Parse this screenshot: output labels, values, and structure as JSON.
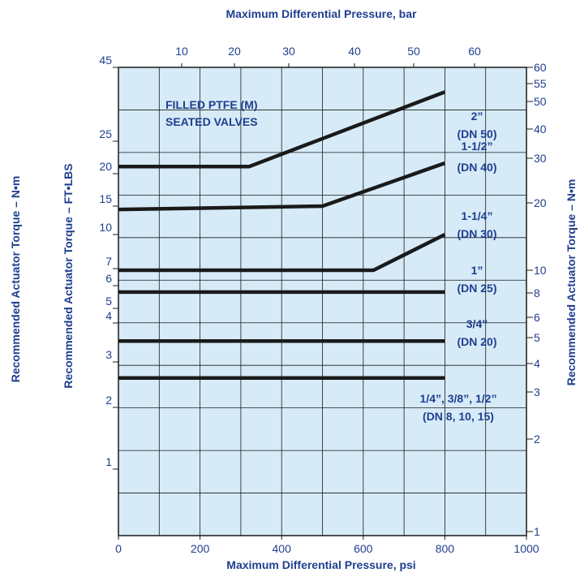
{
  "chart_data": {
    "type": "line",
    "x_bottom": {
      "label": "Maximum Differential Pressure, psi",
      "range": [
        0,
        1000
      ],
      "ticks": [
        0,
        200,
        400,
        600,
        800,
        1000
      ]
    },
    "x_top": {
      "label": "Maximum Differential Pressure, bar",
      "ticks": [
        10,
        20,
        30,
        40,
        50,
        60
      ]
    },
    "y_left_outer": {
      "label": "Recommended Actuator Torque – N•m",
      "ticks": [
        45,
        25,
        20,
        15,
        10,
        7,
        6,
        5,
        4,
        3,
        2,
        1
      ]
    },
    "y_left_inner": {
      "label": "Recommended Actuator Torque – FT•LBS"
    },
    "y_right": {
      "label": "Recommended Actuator Torque – N•m",
      "ticks": [
        60,
        55,
        50,
        40,
        30,
        20,
        10,
        8,
        6,
        5,
        4,
        3,
        2,
        1
      ]
    },
    "annotation": [
      "FILLED PTFE (M)",
      "SEATED VALVES"
    ],
    "series": [
      {
        "name": [
          "2”",
          "(DN 50)"
        ],
        "points": [
          [
            0,
            21
          ],
          [
            320,
            21
          ],
          [
            800,
            37
          ]
        ]
      },
      {
        "name": [
          "1-1/2”",
          "(DN 40)"
        ],
        "points": [
          [
            0,
            14.3
          ],
          [
            500,
            15
          ],
          [
            800,
            21.5
          ]
        ]
      },
      {
        "name": [
          "1-1/4”",
          "(DN 30)"
        ],
        "points": [
          [
            0,
            6.9
          ],
          [
            625,
            6.9
          ],
          [
            800,
            10
          ]
        ]
      },
      {
        "name": [
          "1”",
          "(DN 25)"
        ],
        "points": [
          [
            0,
            5.7
          ],
          [
            800,
            5.7
          ]
        ]
      },
      {
        "name": [
          "3/4”",
          "(DN 20)"
        ],
        "points": [
          [
            0,
            3.5
          ],
          [
            800,
            3.5
          ]
        ]
      },
      {
        "name": [
          "1/4”, 3/8”, 1/2”",
          "(DN 8, 10, 15)"
        ],
        "points": [
          [
            0,
            2.6
          ],
          [
            800,
            2.6
          ]
        ]
      }
    ],
    "colors": {
      "plot_bg": "#d6ebf7",
      "grid": "#1a1a1a",
      "text": "#1f3f8f",
      "line": "#1a1a1a"
    },
    "grid": true
  }
}
